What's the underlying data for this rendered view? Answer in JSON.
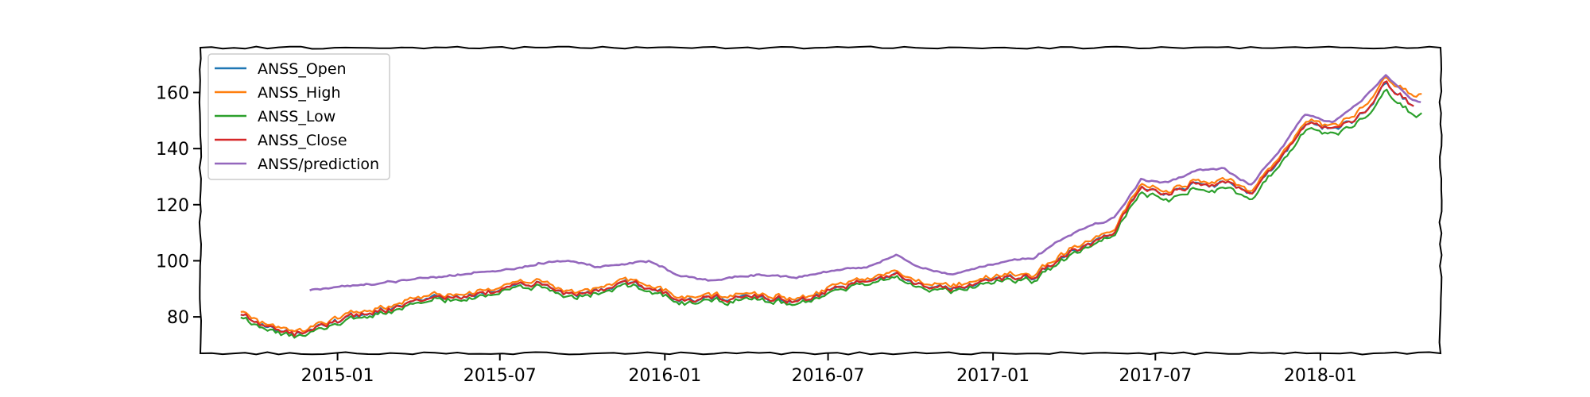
{
  "chart_data": {
    "type": "line",
    "title": "",
    "xlabel": "",
    "ylabel": "",
    "xlim": [
      "2014-08-01",
      "2018-05-15"
    ],
    "ylim": [
      67,
      176
    ],
    "x_ticks": [
      "2015-01",
      "2015-07",
      "2016-01",
      "2016-07",
      "2017-01",
      "2017-07",
      "2018-01"
    ],
    "x_tick_dates": [
      "2015-01-01",
      "2015-07-01",
      "2016-01-01",
      "2016-07-01",
      "2017-01-01",
      "2017-07-01",
      "2018-01-01"
    ],
    "y_ticks": [
      80,
      100,
      120,
      140,
      160
    ],
    "grid": false,
    "legend_position": "top-left",
    "anchor_dates": [
      "2014-09-15",
      "2014-10-15",
      "2014-11-15",
      "2014-12-15",
      "2015-01-15",
      "2015-02-15",
      "2015-03-15",
      "2015-04-15",
      "2015-05-15",
      "2015-06-15",
      "2015-07-15",
      "2015-08-15",
      "2015-09-15",
      "2015-10-15",
      "2015-11-15",
      "2015-12-15",
      "2016-01-15",
      "2016-02-15",
      "2016-03-15",
      "2016-04-15",
      "2016-05-15",
      "2016-06-15",
      "2016-07-15",
      "2016-08-15",
      "2016-09-15",
      "2016-10-15",
      "2016-11-15",
      "2016-12-15",
      "2017-01-15",
      "2017-02-15",
      "2017-03-15",
      "2017-04-15",
      "2017-05-15",
      "2017-06-15",
      "2017-07-15",
      "2017-08-15",
      "2017-09-15",
      "2017-10-15",
      "2017-11-15",
      "2017-12-15",
      "2018-01-15",
      "2018-02-15",
      "2018-03-15",
      "2018-04-15"
    ],
    "series": [
      {
        "name": "ANSS_Open",
        "color": "#1f77b4",
        "start_date": "2014-09-15",
        "end_date": "2018-04-15",
        "values": [
          81,
          76,
          74,
          77,
          80,
          82,
          84,
          87,
          87,
          88,
          91,
          93,
          88,
          89,
          92,
          91,
          86,
          86,
          87,
          87,
          86,
          87,
          91,
          92,
          96,
          92,
          90,
          92,
          94,
          94,
          101,
          106,
          110,
          126,
          124,
          128,
          128,
          123,
          135,
          149,
          147,
          152,
          163,
          155
        ]
      },
      {
        "name": "ANSS_High",
        "color": "#ff7f0e",
        "start_date": "2014-09-15",
        "end_date": "2018-04-25",
        "values": [
          82,
          77,
          75,
          78,
          81,
          83,
          85,
          88,
          88,
          89,
          92,
          94,
          89,
          90,
          93,
          92,
          87,
          87,
          88,
          88,
          87,
          88,
          92,
          93,
          97,
          93,
          91,
          93,
          95,
          95,
          102,
          107,
          111,
          127,
          125,
          129,
          129,
          124,
          136,
          150,
          148,
          154,
          165,
          159
        ]
      },
      {
        "name": "ANSS_Low",
        "color": "#2ca02c",
        "start_date": "2014-09-15",
        "end_date": "2018-04-25",
        "values": [
          80,
          75,
          73,
          76,
          79,
          81,
          83,
          86,
          86,
          87,
          90,
          92,
          87,
          88,
          91,
          90,
          85,
          85,
          86,
          86,
          85,
          86,
          90,
          91,
          95,
          91,
          89,
          91,
          93,
          93,
          100,
          105,
          109,
          124,
          122,
          126,
          126,
          121,
          133,
          147,
          145,
          150,
          160,
          152
        ]
      },
      {
        "name": "ANSS_Close",
        "color": "#d62728",
        "start_date": "2014-09-15",
        "end_date": "2018-04-15",
        "values": [
          81,
          76,
          74,
          77,
          80,
          82,
          84,
          87,
          87,
          88,
          91,
          93,
          88,
          89,
          92,
          91,
          86,
          86,
          87,
          87,
          86,
          87,
          91,
          92,
          96,
          92,
          90,
          92,
          94,
          94,
          101,
          106,
          110,
          126,
          124,
          128,
          128,
          123,
          135,
          149,
          147,
          152,
          163,
          155
        ]
      },
      {
        "name": "ANSS/prediction",
        "color": "#9467bd",
        "start_date": "2014-12-01",
        "end_date": "2018-04-25",
        "values": [
          87,
          88,
          89,
          90,
          91,
          92,
          93,
          94,
          95,
          96,
          97,
          99,
          100,
          98,
          99,
          100,
          95,
          93,
          94,
          95,
          94,
          95,
          97,
          98,
          102,
          97,
          95,
          98,
          100,
          101,
          107,
          112,
          115,
          129,
          128,
          132,
          133,
          127,
          139,
          152,
          149,
          157,
          166,
          157
        ]
      }
    ]
  }
}
